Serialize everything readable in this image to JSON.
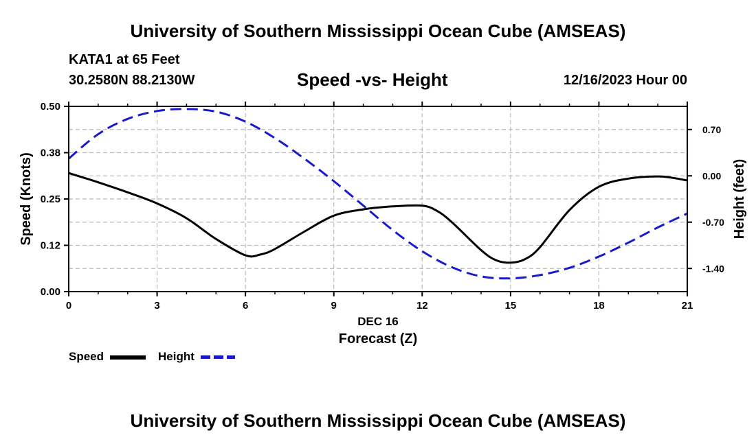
{
  "header": {
    "title": "University of Southern Mississippi Ocean Cube (AMSEAS)",
    "station": "KATA1 at 65 Feet",
    "coords": "30.2580N  88.2130W",
    "subtitle": "Speed -vs- Height",
    "datetime": "12/16/2023 Hour 00"
  },
  "footer": {
    "title": "University of Southern Mississippi Ocean Cube (AMSEAS)"
  },
  "legend": {
    "speed_label": "Speed",
    "height_label": "Height"
  },
  "chart_data": {
    "type": "line",
    "title": "Speed -vs- Height",
    "xlabel": "Forecast (Z)",
    "xlabel_date": "DEC 16",
    "ylabel_left": "Speed (Knots)",
    "ylabel_right": "Height (feet)",
    "xlim": [
      0,
      21
    ],
    "ylim_left": [
      0,
      0.5
    ],
    "ylim_right": [
      -1.75,
      1.05
    ],
    "x_ticks": [
      0,
      3,
      6,
      9,
      12,
      15,
      18,
      21
    ],
    "x_tick_labels": [
      "0",
      "3",
      "6",
      "9",
      "12",
      "15",
      "18",
      "21"
    ],
    "y_left_ticks": [
      0,
      0.125,
      0.25,
      0.375,
      0.5
    ],
    "y_left_tick_labels": [
      "0.00",
      "0.12",
      "0.25",
      "0.38",
      "0.50"
    ],
    "y_right_ticks": [
      0.7,
      0,
      -0.7,
      -1.4
    ],
    "y_right_tick_labels": [
      "0.70",
      "0.00",
      "-0.70",
      "-1.40"
    ],
    "grid": true,
    "colors": {
      "speed": "#000000",
      "height": "#1a1acc",
      "grid": "#bbbbbb"
    },
    "series": [
      {
        "name": "Speed",
        "axis": "left",
        "style": "solid",
        "x": [
          0,
          1,
          2,
          3,
          4,
          5,
          6,
          6.5,
          7,
          8,
          9,
          10,
          11,
          12,
          12.5,
          13,
          14,
          14.5,
          15,
          15.5,
          16,
          17,
          18,
          19,
          20,
          20.5,
          21
        ],
        "values": [
          0.32,
          0.295,
          0.268,
          0.238,
          0.198,
          0.142,
          0.098,
          0.1,
          0.115,
          0.162,
          0.205,
          0.222,
          0.23,
          0.232,
          0.218,
          0.188,
          0.112,
          0.085,
          0.078,
          0.088,
          0.12,
          0.22,
          0.283,
          0.305,
          0.311,
          0.307,
          0.3
        ]
      },
      {
        "name": "Height",
        "axis": "right",
        "style": "dashed",
        "x": [
          0,
          1,
          2,
          3,
          4,
          5,
          6,
          7,
          8,
          9,
          10,
          11,
          12,
          13,
          14,
          15,
          16,
          17,
          18,
          19,
          20,
          21
        ],
        "values": [
          0.26,
          0.63,
          0.86,
          0.98,
          1.01,
          0.97,
          0.82,
          0.57,
          0.26,
          -0.08,
          -0.45,
          -0.82,
          -1.14,
          -1.38,
          -1.52,
          -1.55,
          -1.5,
          -1.39,
          -1.22,
          -1.01,
          -0.78,
          -0.57
        ]
      }
    ]
  }
}
